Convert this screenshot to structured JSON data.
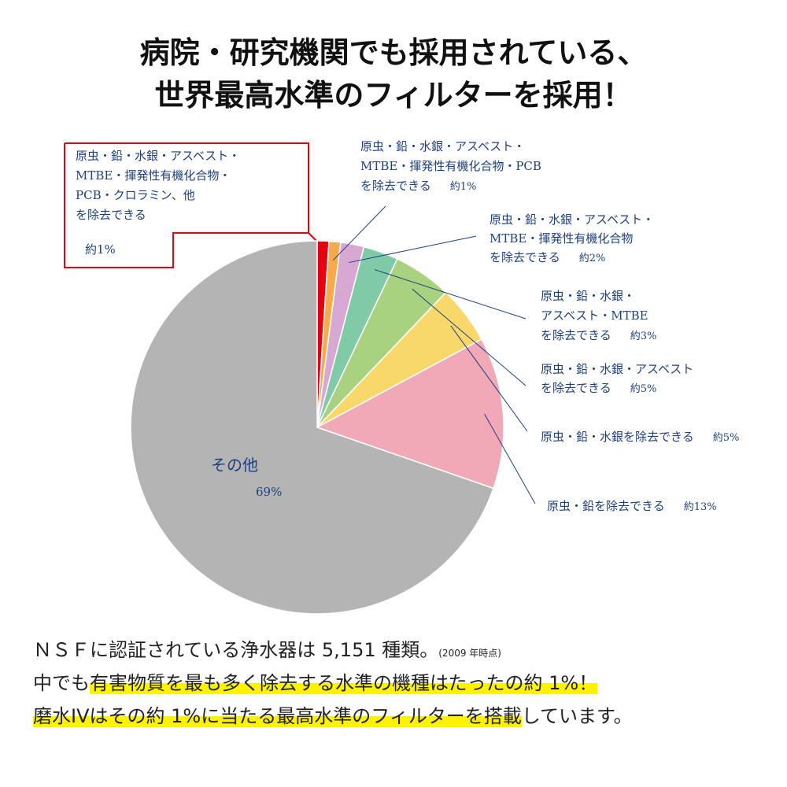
{
  "title_lines": [
    "病院・研究機関でも採用されている、",
    "世界最高水準のフィルターを採用！"
  ],
  "chart_data": {
    "type": "pie",
    "categories": [
      [
        "原虫・鉛・水銀・アスベスト・",
        "MTBE・揮発性有機化合物・",
        "PCB・クロラミン、他",
        "を除去できる"
      ],
      [
        "原虫・鉛・水銀・アスベスト・",
        "MTBE・揮発性有機化合物・PCB",
        "を除去できる"
      ],
      [
        "原虫・鉛・水銀・アスベスト・",
        "MTBE・揮発性有機化合物",
        "を除去できる"
      ],
      [
        "原虫・鉛・水銀・",
        "アスベスト・MTBE",
        "を除去できる"
      ],
      [
        "原虫・鉛・水銀・アスベスト",
        "を除去できる"
      ],
      [
        "原虫・鉛・水銀を除去できる"
      ],
      [
        "原虫・鉛を除去できる"
      ],
      [
        "その他"
      ]
    ],
    "values": [
      1,
      1,
      2,
      3,
      5,
      5,
      13,
      69
    ],
    "value_labels": [
      "約1%",
      "約1%",
      "約2%",
      "約3%",
      "約5%",
      "約5%",
      "約13%",
      "69%"
    ],
    "colors": [
      "#e60012",
      "#f5ab4c",
      "#d7a8d2",
      "#80caa8",
      "#a8d27f",
      "#f9d86b",
      "#f1a9b7",
      "#b4b4b4"
    ]
  },
  "notes": [
    [
      "ＮＳＦに認証されている浄水器は 5,151 種類。",
      "(2009 年時点)"
    ],
    [
      "中でも",
      "有害物質を最も多く除去する水準の機種はたったの約 1%！"
    ],
    [
      "磨水IVはその約 1%に当たる最高水準のフィルターを搭載",
      "しています。"
    ]
  ]
}
